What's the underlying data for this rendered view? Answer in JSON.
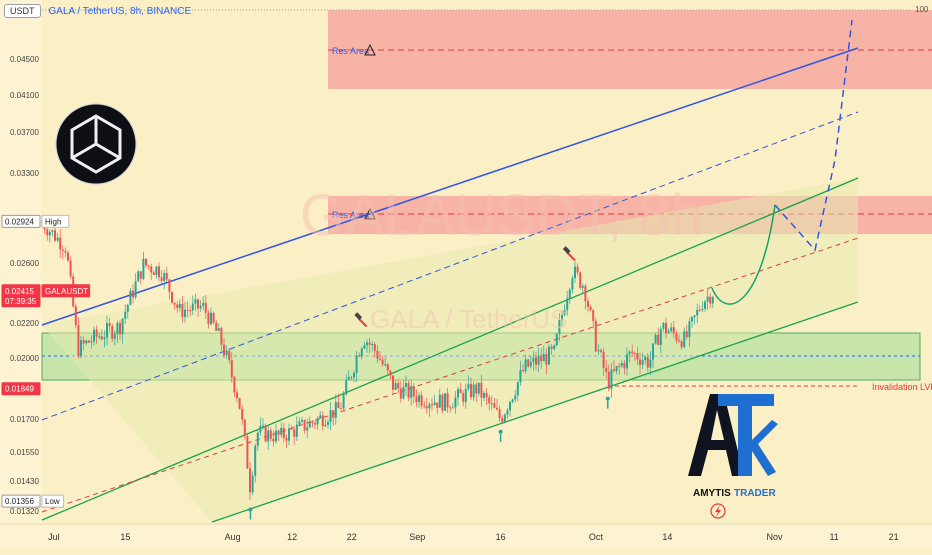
{
  "header": {
    "currency_badge": "USDT",
    "symbol_line": "GALA / TetherUS, 8h, BINANCE"
  },
  "watermark": {
    "big": "GALAUSDT, 8h",
    "small": "GALA / TetherUS"
  },
  "price_axis": {
    "ticks": [
      "0.04500",
      "0.04100",
      "0.03700",
      "0.03300",
      "0.02600",
      "0.02200",
      "0.02000",
      "0.01700",
      "0.01550",
      "0.01430",
      "0.01320"
    ],
    "top_right_label": "100",
    "badges": [
      {
        "value": "0.02924",
        "tag": "High",
        "kind": "high",
        "color": "#ffffff"
      },
      {
        "value": "0.02415",
        "sub": "07:39:35",
        "tag": "GALAUSDT",
        "kind": "last",
        "color": "#f23645"
      },
      {
        "value": "0.01849",
        "tag": "",
        "kind": "invalid",
        "color": "#f23645"
      },
      {
        "value": "0.01356",
        "tag": "Low",
        "kind": "low",
        "color": "#ffffff"
      }
    ]
  },
  "time_axis": {
    "ticks": [
      "Jul",
      "15",
      "Aug",
      "12",
      "22",
      "Sep",
      "16",
      "Oct",
      "14",
      "Nov",
      "11",
      "21"
    ]
  },
  "annotations": {
    "res_area_top": "Res Area",
    "res_area_mid": "Res Area",
    "invalidation": "Invalidation LVL",
    "warning_icon": "warning-triangle-icon"
  },
  "branding": {
    "logo_icon": "gala-cube-logo-icon",
    "trader_name_1": "AMYTIS",
    "trader_name_2": "TRADER",
    "bolt_icon": "lightning-icon"
  },
  "chart_data": {
    "type": "candlestick",
    "symbol": "GALAUSDT",
    "timeframe": "8h",
    "exchange": "BINANCE",
    "yaxis_ticks": [
      0.045,
      0.041,
      0.037,
      0.033,
      0.026,
      0.022,
      0.02,
      0.017,
      0.0155,
      0.0143,
      0.0132
    ],
    "high": 0.02924,
    "low": 0.01356,
    "last": 0.02415,
    "invalidation_level": 0.01849,
    "support_zone": [
      0.0188,
      0.0213
    ],
    "resistance_zones": [
      [
        0.0415,
        0.049
      ],
      [
        0.0275,
        0.0305
      ]
    ],
    "close_path": [
      [
        "Jul 1",
        0.0292
      ],
      [
        "Jul 5",
        0.0272
      ],
      [
        "Jul 7",
        0.0205
      ],
      [
        "Jul 10",
        0.0212
      ],
      [
        "Jul 14",
        0.0218
      ],
      [
        "Jul 18",
        0.0259
      ],
      [
        "Jul 21",
        0.0255
      ],
      [
        "Jul 24",
        0.0228
      ],
      [
        "Jul 28",
        0.0231
      ],
      [
        "Jul 31",
        0.021
      ],
      [
        "Aug 3",
        0.018
      ],
      [
        "Aug 5",
        0.014
      ],
      [
        "Aug 6",
        0.0164
      ],
      [
        "Aug 10",
        0.0162
      ],
      [
        "Aug 15",
        0.0168
      ],
      [
        "Aug 20",
        0.0175
      ],
      [
        "Aug 24",
        0.0212
      ],
      [
        "Aug 26",
        0.0204
      ],
      [
        "Aug 29",
        0.0186
      ],
      [
        "Sep 3",
        0.018
      ],
      [
        "Sep 7",
        0.0178
      ],
      [
        "Sep 12",
        0.0185
      ],
      [
        "Sep 16",
        0.017
      ],
      [
        "Sep 20",
        0.0195
      ],
      [
        "Sep 25",
        0.0203
      ],
      [
        "Sep 28",
        0.0255
      ],
      [
        "Sep 30",
        0.0245
      ],
      [
        "Oct 2",
        0.0208
      ],
      [
        "Oct 4",
        0.0188
      ],
      [
        "Oct 8",
        0.0203
      ],
      [
        "Oct 11",
        0.0198
      ],
      [
        "Oct 13",
        0.0218
      ],
      [
        "Oct 17",
        0.021
      ],
      [
        "Oct 20",
        0.0235
      ],
      [
        "Oct 22",
        0.02415
      ]
    ]
  }
}
